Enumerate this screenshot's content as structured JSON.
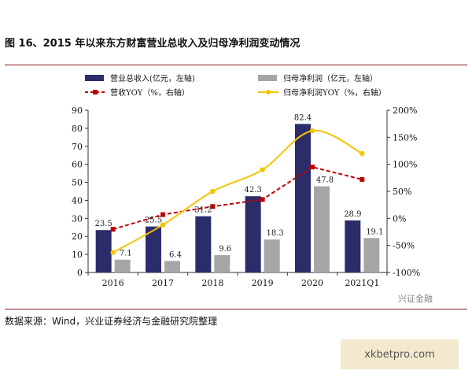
{
  "header": {
    "title": "图 16、2015 年以来东方财富营业总收入及归母净利润变动情况"
  },
  "footer": {
    "source": "数据来源：Wind，兴业证券经济与金融研究院整理",
    "watermark": "兴证金融",
    "site": "xkbetpro.com"
  },
  "chart_data": {
    "type": "bar",
    "title": "",
    "xlabel": "",
    "ylabel": "",
    "categories": [
      "2016",
      "2017",
      "2018",
      "2019",
      "2020",
      "2021Q1"
    ],
    "ylim": [
      0,
      90
    ],
    "yticks": [
      "0",
      "10",
      "20",
      "30",
      "40",
      "50",
      "60",
      "70",
      "80",
      "90"
    ],
    "y2lim": [
      -100,
      200
    ],
    "y2ticks": [
      "-100%",
      "-50%",
      "0%",
      "50%",
      "100%",
      "150%",
      "200%"
    ],
    "grid": false,
    "legend_position": "top",
    "series": [
      {
        "name": "营业总收入(亿元，左轴)",
        "type": "bar",
        "axis": "left",
        "color": "#2b2d6b",
        "values": [
          23.5,
          25.5,
          31.2,
          42.3,
          82.4,
          28.9
        ],
        "labels": [
          "23.5",
          "25.5",
          "31.2",
          "42.3",
          "82.4",
          "28.9"
        ]
      },
      {
        "name": "归母净利润（亿元，左轴）",
        "type": "bar",
        "axis": "left",
        "color": "#a6a6a6",
        "values": [
          7.1,
          6.4,
          9.6,
          18.3,
          47.8,
          19.1
        ],
        "labels": [
          "7.1",
          "6.4",
          "9.6",
          "18.3",
          "47.8",
          "19.1"
        ]
      },
      {
        "name": "营收YOY（%，右轴）",
        "type": "line",
        "axis": "right",
        "color": "#c00000",
        "dashed": true,
        "marker": "square",
        "values": [
          -20,
          7,
          22,
          35,
          95,
          72
        ]
      },
      {
        "name": "归母净利润YOY（%，右轴）",
        "type": "line",
        "axis": "right",
        "color": "#f5c400",
        "dashed": false,
        "marker": "circle",
        "smooth": true,
        "values": [
          -63,
          -12,
          50,
          90,
          162,
          120
        ]
      }
    ]
  }
}
